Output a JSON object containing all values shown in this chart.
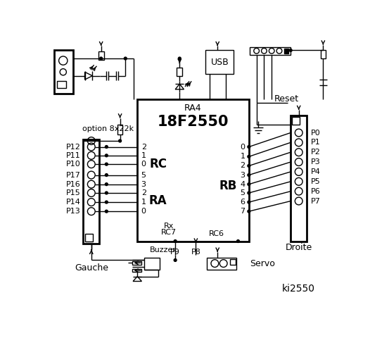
{
  "title": "ki2550",
  "ic_label": "18F2550",
  "ic_ra4": "RA4",
  "ic_rc": "RC",
  "ic_ra": "RA",
  "ic_rb": "RB",
  "ic_rx": "Rx",
  "ic_rc7": "RC7",
  "ic_rc6": "RC6",
  "left_labels": [
    "P12",
    "P11",
    "P10",
    "P17",
    "P16",
    "P15",
    "P14",
    "P13"
  ],
  "rc_nums": [
    "2",
    "1",
    "0"
  ],
  "ra_nums": [
    "5",
    "3",
    "2",
    "1",
    "0"
  ],
  "rb_nums": [
    "0",
    "1",
    "2",
    "3",
    "4",
    "5",
    "6",
    "7"
  ],
  "right_labels": [
    "P0",
    "P1",
    "P2",
    "P3",
    "P4",
    "P5",
    "P6",
    "P7"
  ],
  "option_label": "option 8x22k",
  "usb_label": "USB",
  "reset_label": "Reset",
  "gauche_label": "Gauche",
  "droite_label": "Droite",
  "buzzer_label": "Buzzer",
  "p8_label": "P8",
  "p9_label": "P9",
  "servo_label": "Servo",
  "bg": "#ffffff",
  "fg": "#000000"
}
